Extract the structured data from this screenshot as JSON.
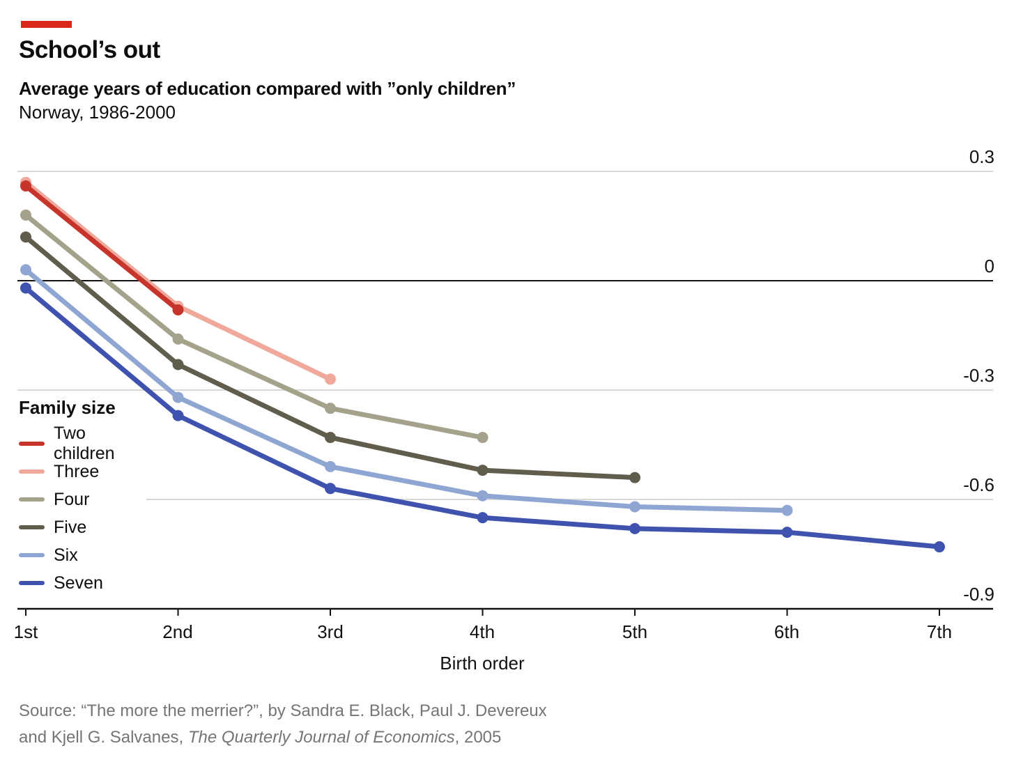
{
  "header": {
    "kicker_color": "#d8281e",
    "title": "School’s out",
    "subtitle": "Average years of education compared with ”only children”",
    "subtitle2": "Norway, 1986-2000"
  },
  "chart_data": {
    "type": "line",
    "categories": [
      "1st",
      "2nd",
      "3rd",
      "4th",
      "5th",
      "6th",
      "7th"
    ],
    "xlabel": "Birth order",
    "ylim": [
      -0.9,
      0.3
    ],
    "yticks": [
      0.3,
      0,
      -0.3,
      -0.6,
      -0.9
    ],
    "ytick_labels": [
      "0.3",
      "0",
      "-0.3",
      "-0.6",
      "-0.9"
    ],
    "grid": true,
    "zero_line": true,
    "legend_position": "middle-left",
    "legend_title": "Family size",
    "colors": {
      "grid": "#d8d8d8",
      "axis": "#111111"
    },
    "series": [
      {
        "name": "Two children",
        "color": "#c7342b",
        "values": [
          0.26,
          -0.08
        ]
      },
      {
        "name": "Three",
        "color": "#f0a89b",
        "values": [
          0.27,
          -0.07,
          -0.27
        ]
      },
      {
        "name": "Four",
        "color": "#a5a28b",
        "values": [
          0.18,
          -0.16,
          -0.35,
          -0.43
        ]
      },
      {
        "name": "Five",
        "color": "#605d4d",
        "values": [
          0.12,
          -0.23,
          -0.43,
          -0.52,
          -0.54
        ]
      },
      {
        "name": "Six",
        "color": "#8fa6d3",
        "values": [
          0.03,
          -0.32,
          -0.51,
          -0.59,
          -0.62,
          -0.63
        ]
      },
      {
        "name": "Seven",
        "color": "#3f53ae",
        "values": [
          -0.02,
          -0.37,
          -0.57,
          -0.65,
          -0.68,
          -0.69,
          -0.73
        ]
      }
    ]
  },
  "source": {
    "line1": "Source: “The more the merrier?”, by Sandra E. Black, Paul J. Devereux",
    "line2_prefix": "and Kjell G. Salvanes, ",
    "line2_italic": "The Quarterly Journal of Economics",
    "line2_suffix": ", 2005"
  }
}
